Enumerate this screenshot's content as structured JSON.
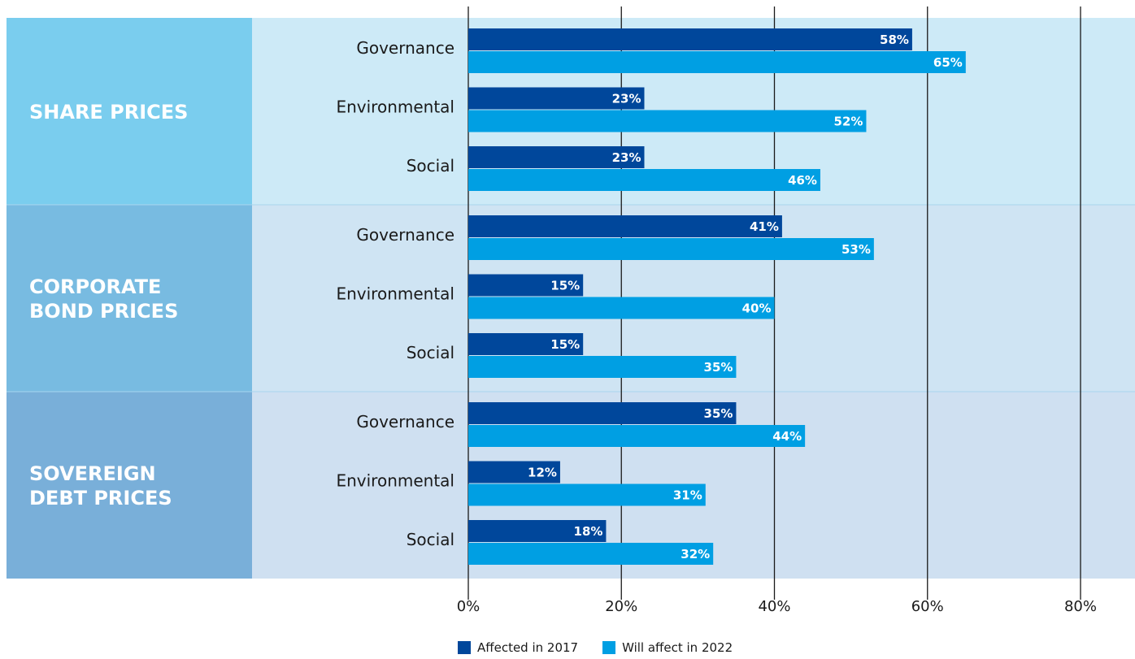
{
  "chart_data": {
    "type": "bar",
    "orientation": "horizontal",
    "xlim": [
      0,
      80
    ],
    "x_ticks": [
      "0%",
      "20%",
      "40%",
      "60%",
      "80%"
    ],
    "grid": "vertical",
    "legend_placement": "bottom-center",
    "series": [
      {
        "name": "Affected in 2017",
        "color": "#00479b"
      },
      {
        "name": "Will affect in 2022",
        "color": "#009fe3"
      }
    ],
    "groups": [
      {
        "label_lines": [
          "SHARE PRICES"
        ],
        "panel_color": "#7acdee",
        "band_color": "#cdeaf7",
        "categories": [
          {
            "name": "Governance",
            "values": [
              58,
              65
            ],
            "labels": [
              "58%",
              "65%"
            ]
          },
          {
            "name": "Environmental",
            "values": [
              23,
              52
            ],
            "labels": [
              "23%",
              "52%"
            ]
          },
          {
            "name": "Social",
            "values": [
              23,
              46
            ],
            "labels": [
              "23%",
              "46%"
            ]
          }
        ]
      },
      {
        "label_lines": [
          "CORPORATE",
          "BOND PRICES"
        ],
        "panel_color": "#78bbe1",
        "band_color": "#cfe4f3",
        "categories": [
          {
            "name": "Governance",
            "values": [
              41,
              53
            ],
            "labels": [
              "41%",
              "53%"
            ]
          },
          {
            "name": "Environmental",
            "values": [
              15,
              40
            ],
            "labels": [
              "15%",
              "40%"
            ]
          },
          {
            "name": "Social",
            "values": [
              15,
              35
            ],
            "labels": [
              "15%",
              "35%"
            ]
          }
        ]
      },
      {
        "label_lines": [
          "SOVEREIGN",
          "DEBT PRICES"
        ],
        "panel_color": "#79afd9",
        "band_color": "#cfe0f1",
        "categories": [
          {
            "name": "Governance",
            "values": [
              35,
              44
            ],
            "labels": [
              "35%",
              "44%"
            ]
          },
          {
            "name": "Environmental",
            "values": [
              12,
              31
            ],
            "labels": [
              "12%",
              "31%"
            ]
          },
          {
            "name": "Social",
            "values": [
              18,
              32
            ],
            "labels": [
              "18%",
              "32%"
            ]
          }
        ]
      }
    ]
  }
}
